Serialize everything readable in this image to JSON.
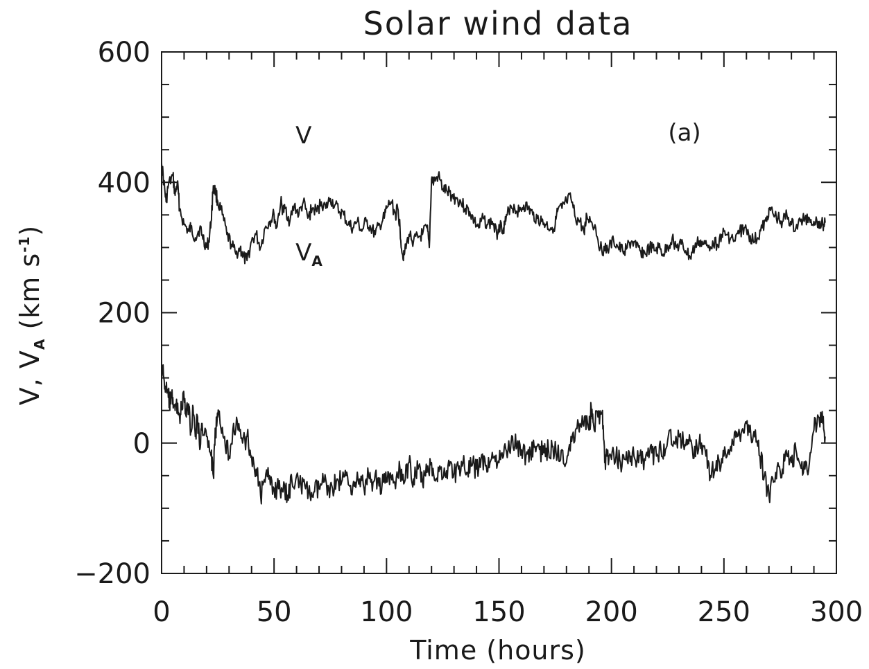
{
  "chart_data": {
    "type": "line",
    "title": "Solar wind data",
    "panel_label": "(a)",
    "xlabel": "Time (hours)",
    "ylabel": {
      "text": "V, V",
      "subscript": "A",
      "unit_prefix": " (km s",
      "superscript": "-1",
      "unit_suffix": ")"
    },
    "xlim": [
      0,
      300
    ],
    "ylim": [
      -200,
      600
    ],
    "x_ticks": [
      "0",
      "50",
      "100",
      "150",
      "200",
      "250",
      "300"
    ],
    "y_ticks": [
      "600",
      "400",
      "200",
      "0",
      "−200"
    ],
    "grid": false,
    "series": [
      {
        "name": "V",
        "label_text": "V",
        "label_sub": "",
        "color": "#1a1a1a",
        "x": [
          0,
          1,
          2,
          3,
          5,
          6,
          7,
          8,
          10,
          12,
          13,
          15,
          17,
          18,
          20,
          21,
          22,
          23,
          24,
          25,
          27,
          29,
          31,
          33,
          35,
          36,
          38,
          40,
          42,
          44,
          46,
          48,
          50,
          51,
          53,
          54,
          55,
          57,
          59,
          61,
          63,
          65,
          67,
          69,
          71,
          73,
          75,
          77,
          79,
          81,
          83,
          85,
          87,
          89,
          91,
          93,
          95,
          97,
          99,
          100,
          102,
          104,
          105,
          106,
          107,
          108,
          110,
          112,
          114,
          116,
          118,
          119,
          120,
          121,
          123,
          125,
          127,
          129,
          131,
          133,
          135,
          137,
          139,
          141,
          143,
          145,
          147,
          149,
          150,
          152,
          153,
          155,
          157,
          159,
          161,
          163,
          165,
          167,
          169,
          171,
          173,
          175,
          176,
          178,
          180,
          182,
          184,
          186,
          188,
          189,
          191,
          193,
          195,
          197,
          199,
          201,
          203,
          205,
          207,
          209,
          211,
          213,
          215,
          217,
          219,
          221,
          223,
          225,
          227,
          229,
          231,
          233,
          235,
          237,
          239,
          241,
          243,
          245,
          247,
          249,
          251,
          253,
          255,
          257,
          259,
          261,
          263,
          265,
          267,
          269,
          270,
          272,
          274,
          276,
          278,
          280,
          282,
          284,
          286,
          288,
          290,
          292,
          294,
          295
        ],
        "y": [
          430,
          400,
          370,
          395,
          410,
          380,
          400,
          360,
          335,
          325,
          330,
          315,
          330,
          320,
          300,
          310,
          340,
          395,
          385,
          370,
          350,
          320,
          305,
          290,
          300,
          285,
          280,
          310,
          320,
          300,
          330,
          340,
          350,
          330,
          370,
          355,
          360,
          340,
          365,
          350,
          370,
          345,
          360,
          355,
          370,
          360,
          375,
          365,
          355,
          350,
          335,
          330,
          340,
          325,
          340,
          330,
          320,
          335,
          345,
          360,
          370,
          350,
          360,
          330,
          290,
          290,
          320,
          310,
          315,
          320,
          330,
          300,
          405,
          400,
          410,
          390,
          385,
          380,
          375,
          370,
          360,
          355,
          340,
          330,
          345,
          335,
          340,
          320,
          335,
          330,
          340,
          365,
          360,
          355,
          365,
          360,
          350,
          345,
          340,
          335,
          330,
          335,
          355,
          360,
          370,
          375,
          345,
          340,
          320,
          350,
          340,
          330,
          300,
          295,
          300,
          310,
          300,
          295,
          300,
          310,
          300,
          295,
          290,
          300,
          295,
          300,
          290,
          300,
          315,
          300,
          305,
          295,
          285,
          300,
          310,
          305,
          300,
          310,
          305,
          320,
          320,
          315,
          310,
          325,
          330,
          320,
          310,
          315,
          330,
          340,
          360,
          350,
          345,
          340,
          350,
          335,
          330,
          340,
          345,
          345,
          340,
          340,
          335,
          338
        ]
      },
      {
        "name": "V_A",
        "label_text": "V",
        "label_sub": "A",
        "color": "#1a1a1a",
        "x": [
          0,
          1,
          2,
          3,
          4,
          5,
          6,
          7,
          8,
          9,
          10,
          11,
          12,
          13,
          14,
          15,
          16,
          17,
          18,
          20,
          22,
          23,
          24,
          25,
          26,
          28,
          30,
          32,
          34,
          36,
          38,
          40,
          42,
          44,
          46,
          48,
          50,
          52,
          54,
          56,
          58,
          60,
          62,
          64,
          66,
          68,
          70,
          72,
          74,
          76,
          78,
          80,
          82,
          84,
          86,
          88,
          90,
          92,
          94,
          96,
          98,
          100,
          102,
          104,
          106,
          108,
          110,
          112,
          114,
          116,
          118,
          120,
          122,
          124,
          126,
          128,
          130,
          132,
          134,
          136,
          138,
          140,
          142,
          144,
          146,
          148,
          150,
          152,
          154,
          156,
          158,
          160,
          162,
          164,
          166,
          168,
          170,
          172,
          174,
          176,
          178,
          180,
          182,
          184,
          186,
          188,
          190,
          191,
          192,
          194,
          196,
          197,
          198,
          200,
          202,
          204,
          206,
          208,
          210,
          212,
          214,
          216,
          218,
          220,
          222,
          224,
          226,
          228,
          230,
          232,
          234,
          236,
          238,
          240,
          242,
          244,
          246,
          248,
          250,
          252,
          254,
          256,
          258,
          260,
          262,
          264,
          266,
          268,
          270,
          272,
          274,
          276,
          278,
          280,
          282,
          284,
          286,
          288,
          290,
          292,
          294,
          295
        ],
        "y": [
          120,
          100,
          80,
          70,
          60,
          70,
          50,
          60,
          40,
          55,
          70,
          40,
          60,
          20,
          55,
          10,
          40,
          -10,
          30,
          10,
          -20,
          -50,
          20,
          40,
          30,
          10,
          -20,
          30,
          20,
          0,
          10,
          -20,
          -40,
          -80,
          -60,
          -50,
          -70,
          -70,
          -75,
          -80,
          -60,
          -50,
          -65,
          -70,
          -80,
          -75,
          -70,
          -60,
          -65,
          -70,
          -55,
          -60,
          -50,
          -65,
          -60,
          -55,
          -70,
          -50,
          -60,
          -55,
          -65,
          -60,
          -50,
          -70,
          -40,
          -60,
          -30,
          -55,
          -40,
          -60,
          -45,
          -30,
          -55,
          -40,
          -50,
          -35,
          -45,
          -40,
          -30,
          -45,
          -35,
          -40,
          -25,
          -35,
          -30,
          -20,
          -30,
          -20,
          -10,
          10,
          -5,
          -10,
          -20,
          -15,
          -5,
          -10,
          -15,
          -10,
          -5,
          -20,
          -10,
          -30,
          10,
          20,
          30,
          40,
          20,
          55,
          30,
          40,
          50,
          -30,
          -20,
          -25,
          -20,
          -30,
          -25,
          -15,
          -20,
          -30,
          -25,
          -20,
          -15,
          -20,
          -10,
          -10,
          20,
          0,
          10,
          0,
          5,
          -10,
          -5,
          0,
          -20,
          -50,
          -40,
          -30,
          -20,
          -10,
          0,
          10,
          20,
          30,
          10,
          20,
          -20,
          -50,
          -80,
          -60,
          -30,
          -40,
          -20,
          -30,
          -10,
          -35,
          -40,
          -30,
          20,
          40,
          30,
          10
        ]
      }
    ]
  }
}
